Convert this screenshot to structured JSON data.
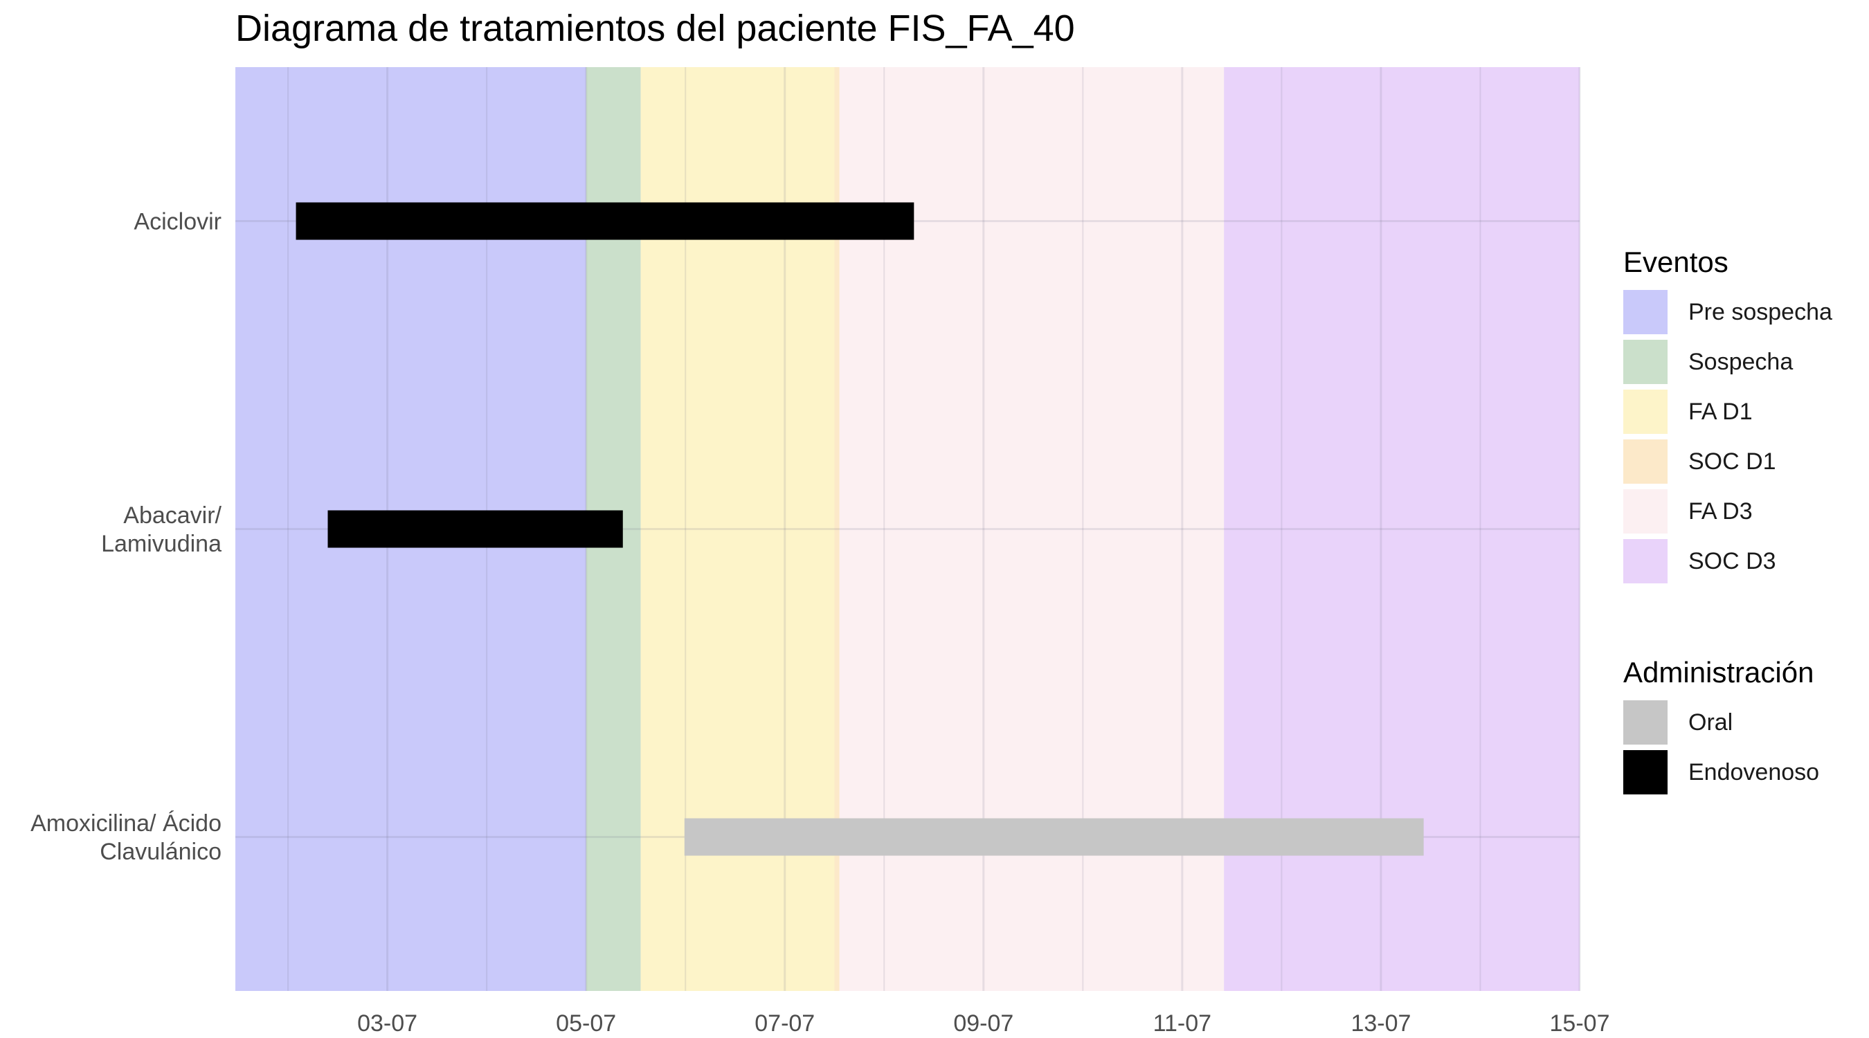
{
  "chart_data": {
    "type": "gantt",
    "title": "Diagrama de tratamientos del paciente FIS_FA_40",
    "xlabel": "",
    "ylabel": "",
    "x_unit": "day of July",
    "xlim": [
      1.47,
      15.0
    ],
    "x_ticks": [
      {
        "value": 3,
        "label": "03-07"
      },
      {
        "value": 5,
        "label": "05-07"
      },
      {
        "value": 7,
        "label": "07-07"
      },
      {
        "value": 9,
        "label": "09-07"
      },
      {
        "value": 11,
        "label": "11-07"
      },
      {
        "value": 13,
        "label": "13-07"
      },
      {
        "value": 15,
        "label": "15-07"
      }
    ],
    "grid": true,
    "legend_position": "right",
    "categories": [
      "Aciclovir",
      "Abacavir/\nLamivudina",
      "Amoxicilina/ Ácido\nClavulánico"
    ],
    "event_periods": [
      {
        "name": "Pre sospecha",
        "start": 1.47,
        "end": 5.0,
        "color": "#c9c9fa"
      },
      {
        "name": "Sospecha",
        "start": 5.0,
        "end": 5.55,
        "color": "#cbe0cb"
      },
      {
        "name": "FA D1",
        "start": 5.55,
        "end": 7.55,
        "color": "#fdf4c9"
      },
      {
        "name": "SOC D1",
        "start": 7.5,
        "end": 7.55,
        "color": "#fce9c9"
      },
      {
        "name": "FA D3",
        "start": 7.55,
        "end": 11.42,
        "color": "#fcf0f2"
      },
      {
        "name": "SOC D3",
        "start": 11.42,
        "end": 15.0,
        "color": "#e9d3fa"
      }
    ],
    "treatments": [
      {
        "drug": "Aciclovir",
        "start": 2.08,
        "end": 8.3,
        "administration": "Endovenoso"
      },
      {
        "drug": "Abacavir/\nLamivudina",
        "start": 2.4,
        "end": 5.37,
        "administration": "Endovenoso"
      },
      {
        "drug": "Amoxicilina/ Ácido\nClavulánico",
        "start": 5.99,
        "end": 13.43,
        "administration": "Oral"
      }
    ],
    "legends": {
      "events": {
        "title": "Eventos",
        "items": [
          {
            "label": "Pre sospecha",
            "color": "#c9c9fa"
          },
          {
            "label": "Sospecha",
            "color": "#cbe0cb"
          },
          {
            "label": "FA D1",
            "color": "#fdf4c9"
          },
          {
            "label": "SOC D1",
            "color": "#fce9c9"
          },
          {
            "label": "FA D3",
            "color": "#fcf0f2"
          },
          {
            "label": "SOC D3",
            "color": "#e9d3fa"
          }
        ]
      },
      "administration": {
        "title": "Administración",
        "items": [
          {
            "label": "Oral",
            "color": "#c6c6c6"
          },
          {
            "label": "Endovenoso",
            "color": "#000000"
          }
        ]
      }
    }
  }
}
